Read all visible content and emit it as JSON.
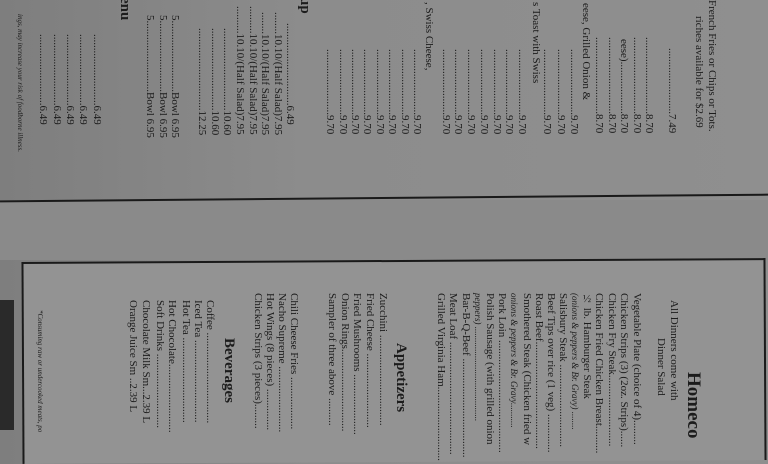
{
  "upper": [
    "French Fries or Chips or Tots.",
    "riches available for $2.69",
    "........................7.49",
    "............................8.70",
    "............................8.70",
    "eese)...................8.70",
    "............................8.70",
    "............................8.70",
    "eese, Grilled Onion &",
    "........................9.70",
    "........................9.70",
    "........................9.70",
    "s Toast with Swiss",
    "........................9.70",
    "........................9.70",
    "........................9.70",
    "........................9.70",
    "........................9.70",
    "........................9.70",
    "........................9.70",
    ", Swiss Cheese,",
    "........................9.70",
    "........................9.70",
    "........................9.70",
    "........................9.70",
    "........................9.70",
    "........................9.70",
    "........................9.70",
    "........................9.70",
    "up",
    "..............................6.49",
    "........10.10/(Half Salad)7.95",
    "........10.10/(Half Salad)7.95",
    "..........10.10/(Half Salad)7.95",
    "..........10.10/(Half Salad)7.95",
    "..............................10.60",
    "..............................10.60",
    "..............................12.25",
    "5..........................Bowl  6.95",
    "5..........................Bowl  6.95",
    "5..........................Bowl  6.95",
    "enu",
    "..........................6.49",
    "..........................6.49",
    "..........................6.49",
    "..........................6.49",
    "..........................6.49",
    "ings, may increase your risk of foodborne illness."
  ],
  "lower": {
    "title": "Homeco",
    "subtitle1": "All Dinners come with",
    "subtitle2": "Dinner Salad",
    "dinners": [
      "Vegetable Plate (choice of 4).........",
      "Chicken Strips (3) (2oz. Strips)......",
      "Chicken Fry Steak..........................",
      "Chicken Fried Chicken Breast..........",
      "½ lb. Hamburger Steak",
      "(onions & peppers & Br. Gravy)  ........",
      "Salisbury Steak ..............................",
      "Beef Tips over rice (1 veg) ..............",
      "Roast Beef.......................................",
      "Smothered Steak (Chicken fried w",
      "onions & peppers & Br. Gravy...........",
      "Pork Loin .........................................",
      "Polish Sausage (with grilled onion",
      "peppers) ..........................................",
      "Bar-B-Q-Beef ....................................",
      "Meat Loaf .........................................",
      "Grilled Virginia Ham..........................."
    ],
    "appetizers_heading": "Appetizers",
    "appetizers": [
      "Zucchini .................................",
      "Fried Cheese ...........................",
      "Fried Mushrooms ......................",
      "Onion Rings..............................",
      "Sampler of three above ..........",
      "Chili Cheese Fries ...................",
      "Nacho Supreme ........................",
      "Hot Wings (8 pieces) ...............",
      "Chicken Strips (3 pieces)........."
    ],
    "beverages_heading": "Beverages",
    "beverages": [
      "Coffee .................................",
      "Iced Tea ..............................",
      "Hot Tea ...............................",
      "Hot Chocolate.........................",
      "Soft Drinks ...........................",
      "Chocolate Milk Sm...2.39  L",
      "Orange Juice    Sm ..2.39  L"
    ],
    "footnote": "*Consuming raw or undercooked meats, po"
  }
}
